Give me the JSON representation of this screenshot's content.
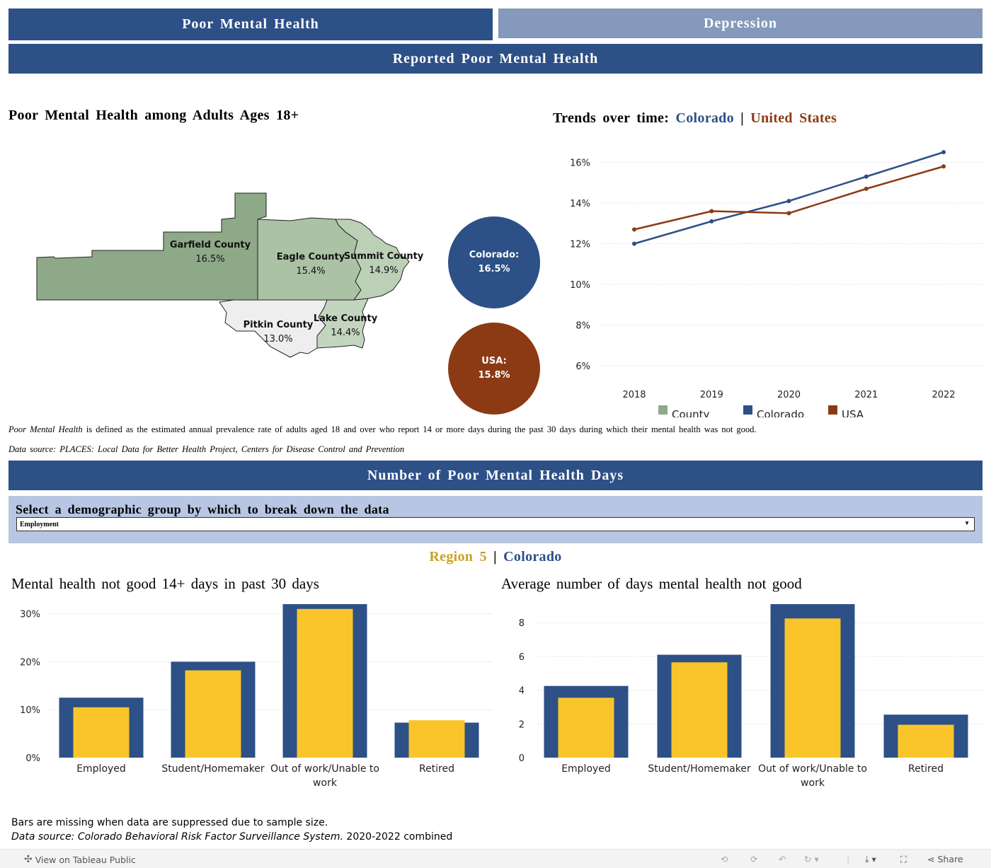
{
  "tabs": [
    {
      "label": "Poor Mental Health",
      "active": true
    },
    {
      "label": "Depression",
      "active": false
    }
  ],
  "banner1": "Reported Poor Mental Health",
  "map_section": {
    "title": "Poor Mental Health among Adults Ages 18+",
    "counties": [
      {
        "name": "Garfield County",
        "value": "16.5%",
        "color": "#8ea987"
      },
      {
        "name": "Eagle County",
        "value": "15.4%",
        "color": "#abc2a5"
      },
      {
        "name": "Summit County",
        "value": "14.9%",
        "color": "#bcd0b6"
      },
      {
        "name": "Pitkin County",
        "value": "13.0%",
        "color": "#eeeeee"
      },
      {
        "name": "Lake County",
        "value": "14.4%",
        "color": "#c4d5bf"
      }
    ],
    "colorado_label": "Colorado:",
    "colorado_value": "16.5%",
    "usa_label": "USA:",
    "usa_value": "15.8%"
  },
  "trend": {
    "title_prefix": "Trends over time:",
    "title_colorado": "Colorado",
    "title_sep": "|",
    "title_us": "United States"
  },
  "notes": {
    "definition_italic": "Poor Mental Health",
    "definition_rest": " is defined as the estimated annual prevalence rate of adults aged 18 and over who report 14 or more days during the past 30 days during which their mental health was not good.",
    "source": "Data source: PLACES: Local Data for Better Health Project, Centers for Disease Control and Prevention"
  },
  "banner2": "Number of Poor Mental Health Days",
  "selector": {
    "label": "Select a demographic group by which to break down the data",
    "value": "Employment"
  },
  "region_header": {
    "region": "Region 5",
    "sep": "|",
    "state": "Colorado"
  },
  "footer": {
    "line1": "Bars are missing when data are suppressed due to sample size.",
    "line2_italic": "Data source: Colorado Behavioral Risk Factor Surveillance System.",
    "line2_rest": " 2020-2022 combined"
  },
  "toolbar": {
    "view_label": "View on Tableau Public",
    "share_label": "Share"
  },
  "colors": {
    "navy": "#2d5087",
    "gold": "#f9c52a",
    "rust": "#8b3a14",
    "region_gold": "#c9a227"
  },
  "chart_data": [
    {
      "type": "line",
      "title": "Trends over time: Colorado | United States",
      "x": [
        "2018",
        "2019",
        "2020",
        "2021",
        "2022"
      ],
      "yticks": [
        "6%",
        "8%",
        "10%",
        "12%",
        "14%",
        "16%"
      ],
      "ylim": [
        5.2,
        17.2
      ],
      "series": [
        {
          "name": "Colorado",
          "color": "#2d5087",
          "values": [
            12.0,
            13.1,
            14.1,
            15.3,
            16.5
          ]
        },
        {
          "name": "USA",
          "color": "#8b3a14",
          "values": [
            12.7,
            13.6,
            13.5,
            14.7,
            15.8
          ]
        }
      ],
      "legend": [
        {
          "name": "County",
          "color": "#8ea987"
        },
        {
          "name": "Colorado",
          "color": "#2d5087"
        },
        {
          "name": "USA",
          "color": "#8b3a14"
        }
      ],
      "legend_position": "bottom",
      "grid": true
    },
    {
      "type": "bar",
      "title": "Mental health not good 14+ days in past 30 days",
      "categories": [
        "Employed",
        "Student/Homemaker",
        "Out of work/Unable to work",
        "Retired"
      ],
      "yticks": [
        "0%",
        "10%",
        "20%",
        "30%"
      ],
      "ylim": [
        0,
        32
      ],
      "series": [
        {
          "name": "Colorado",
          "color": "#2d5087",
          "values": [
            12.5,
            20.0,
            32.0,
            7.3
          ]
        },
        {
          "name": "Region 5",
          "color": "#f9c52a",
          "values": [
            10.5,
            18.2,
            31.0,
            7.8
          ]
        }
      ],
      "grid": true
    },
    {
      "type": "bar",
      "title": "Average number of days mental health not good",
      "categories": [
        "Employed",
        "Student/Homemaker",
        "Out of work/Unable to work",
        "Retired"
      ],
      "yticks": [
        "0",
        "2",
        "4",
        "6",
        "8"
      ],
      "ylim": [
        0,
        9.1
      ],
      "series": [
        {
          "name": "Colorado",
          "color": "#2d5087",
          "values": [
            4.25,
            6.1,
            9.1,
            2.55
          ]
        },
        {
          "name": "Region 5",
          "color": "#f9c52a",
          "values": [
            3.55,
            5.65,
            8.25,
            1.95
          ]
        }
      ],
      "grid": true
    }
  ]
}
